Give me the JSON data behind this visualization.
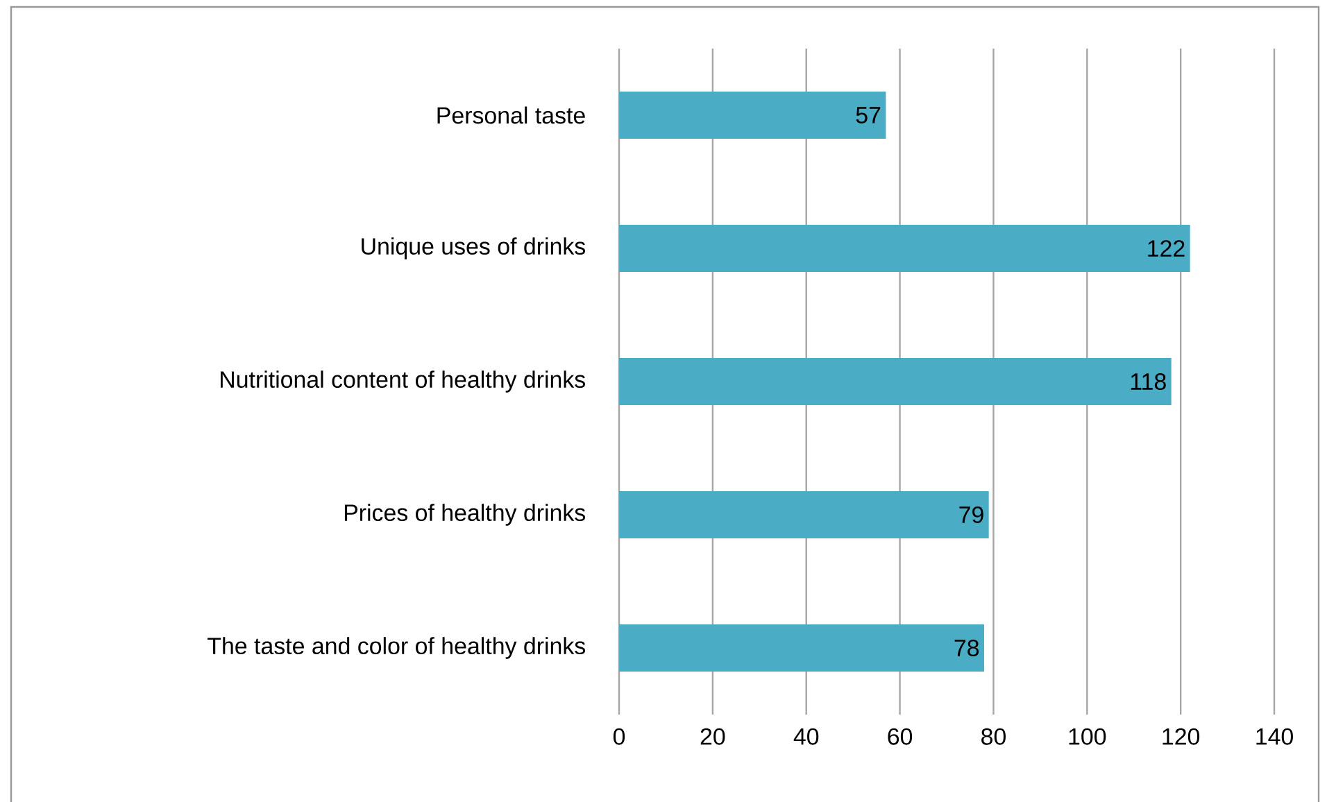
{
  "chart_data": {
    "type": "bar",
    "orientation": "horizontal",
    "categories": [
      "Personal taste",
      "Unique uses of drinks",
      "Nutritional content of healthy drinks",
      "Prices of healthy drinks",
      "The taste and color of healthy drinks"
    ],
    "values": [
      57,
      122,
      118,
      79,
      78
    ],
    "color": "#4bacc6",
    "xlim": [
      0,
      140
    ],
    "xticks": [
      0,
      20,
      40,
      60,
      80,
      100,
      120,
      140
    ],
    "grid": "x",
    "data_labels": true
  }
}
